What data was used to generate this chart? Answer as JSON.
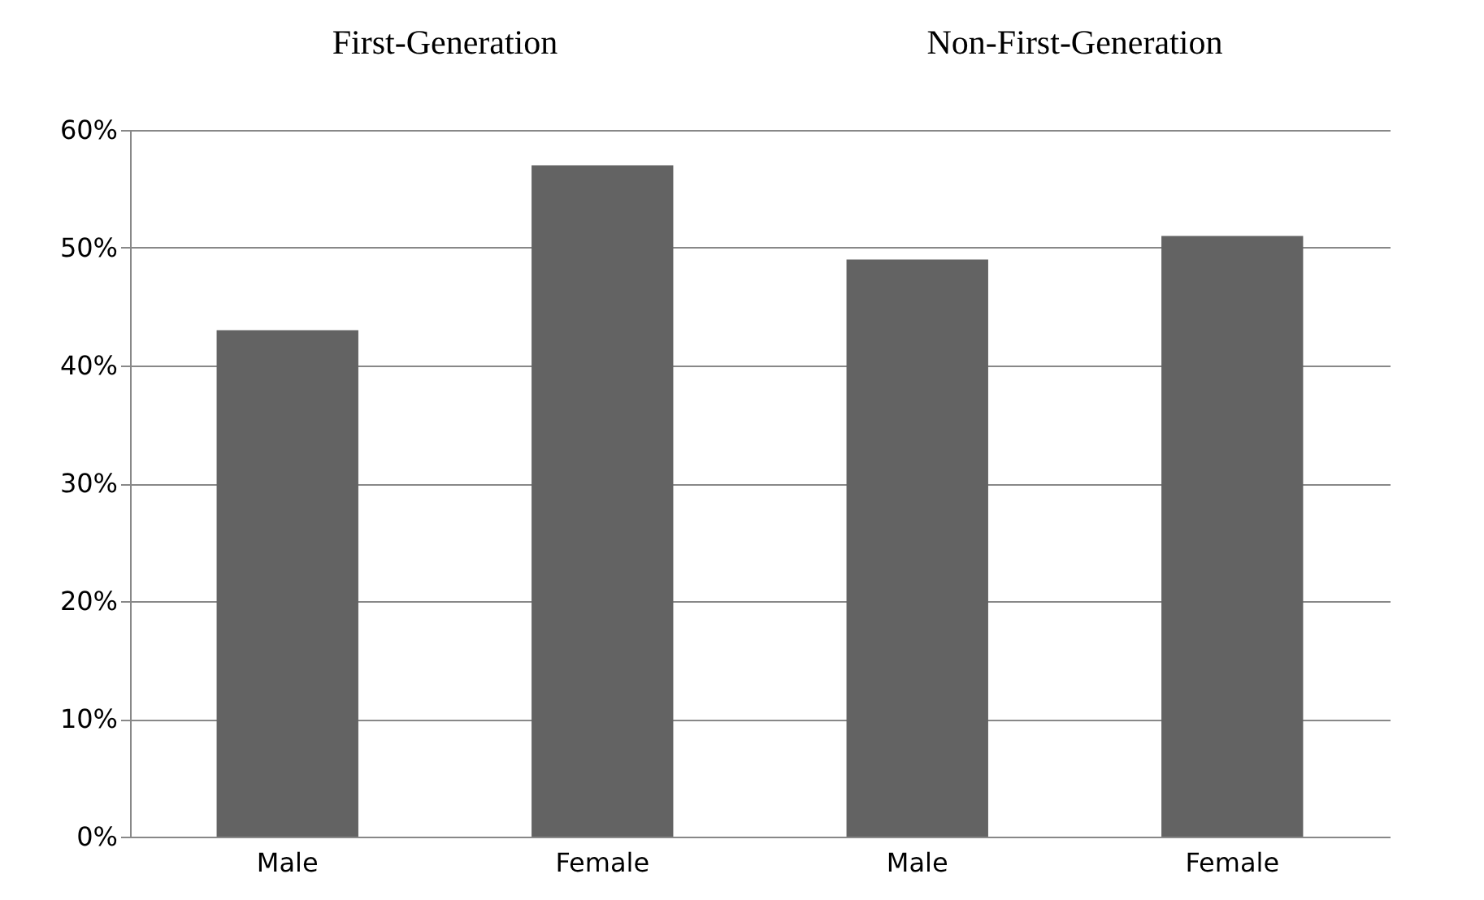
{
  "chart_data": {
    "type": "bar",
    "annotations": [
      "First-Generation",
      "Non-First-Generation"
    ],
    "categories": [
      "Male",
      "Female",
      "Male",
      "Female"
    ],
    "values": [
      43,
      57,
      49,
      51
    ],
    "color": "#636363",
    "ylim": [
      0,
      60
    ],
    "yticks": [
      {
        "value": 0,
        "label": "0%"
      },
      {
        "value": 10,
        "label": "10%"
      },
      {
        "value": 20,
        "label": "20%"
      },
      {
        "value": 30,
        "label": "30%"
      },
      {
        "value": 40,
        "label": "40%"
      },
      {
        "value": 50,
        "label": "50%"
      },
      {
        "value": 60,
        "label": "60%"
      }
    ],
    "grid": "y"
  }
}
